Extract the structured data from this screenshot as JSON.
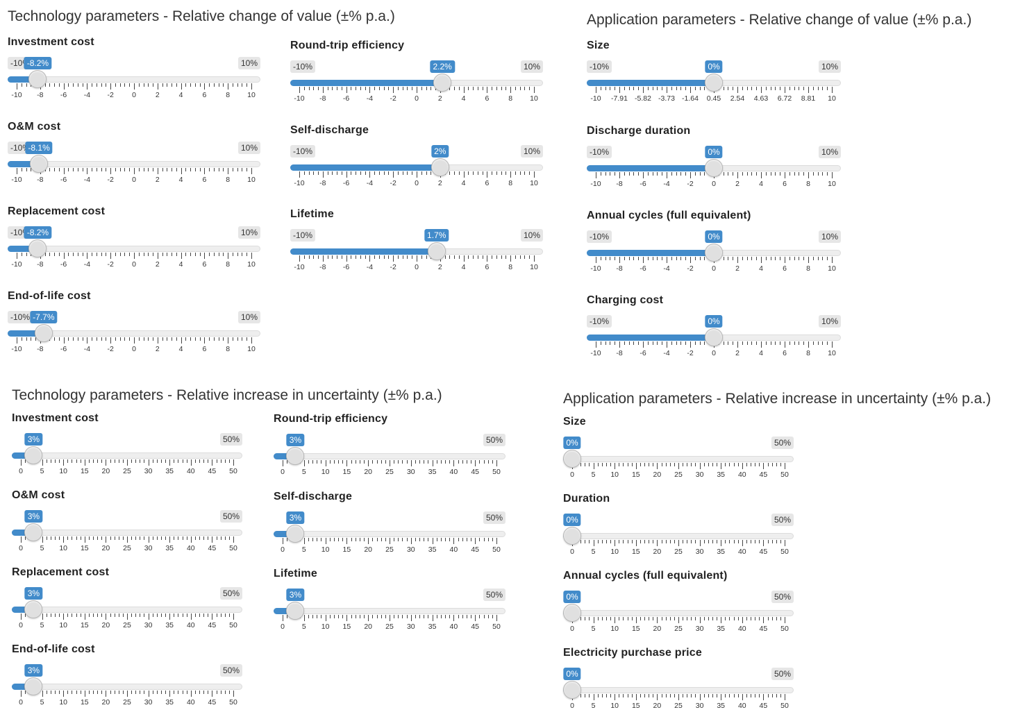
{
  "sections": [
    {
      "id": "tech_value",
      "title": "Technology parameters - Relative change of value (±% p.a.)",
      "sliders": [
        {
          "label": "Investment cost",
          "min": "-10%",
          "max": "10%",
          "value_label": "-8.2%",
          "value": -8.2,
          "range": [
            -10,
            10
          ],
          "ticks": [
            "-10",
            "-8",
            "-6",
            "-4",
            "-2",
            "0",
            "2",
            "4",
            "6",
            "8",
            "10"
          ]
        },
        {
          "label": "O&M cost",
          "min": "-10%",
          "max": "10%",
          "value_label": "-8.1%",
          "value": -8.1,
          "range": [
            -10,
            10
          ],
          "ticks": [
            "-10",
            "-8",
            "-6",
            "-4",
            "-2",
            "0",
            "2",
            "4",
            "6",
            "8",
            "10"
          ]
        },
        {
          "label": "Replacement cost",
          "min": "-10%",
          "max": "10%",
          "value_label": "-8.2%",
          "value": -8.2,
          "range": [
            -10,
            10
          ],
          "ticks": [
            "-10",
            "-8",
            "-6",
            "-4",
            "-2",
            "0",
            "2",
            "4",
            "6",
            "8",
            "10"
          ]
        },
        {
          "label": "End-of-life cost",
          "min": "-10%",
          "max": "10%",
          "value_label": "-7.7%",
          "value": -7.7,
          "range": [
            -10,
            10
          ],
          "ticks": [
            "-10",
            "-8",
            "-6",
            "-4",
            "-2",
            "0",
            "2",
            "4",
            "6",
            "8",
            "10"
          ]
        },
        {
          "label": "Round-trip efficiency",
          "min": "-10%",
          "max": "10%",
          "value_label": "2.2%",
          "value": 2.2,
          "range": [
            -10,
            10
          ],
          "ticks": [
            "-10",
            "-8",
            "-6",
            "-4",
            "-2",
            "0",
            "2",
            "4",
            "6",
            "8",
            "10"
          ]
        },
        {
          "label": "Self-discharge",
          "min": "-10%",
          "max": "10%",
          "value_label": "2%",
          "value": 2,
          "range": [
            -10,
            10
          ],
          "ticks": [
            "-10",
            "-8",
            "-6",
            "-4",
            "-2",
            "0",
            "2",
            "4",
            "6",
            "8",
            "10"
          ]
        },
        {
          "label": "Lifetime",
          "min": "-10%",
          "max": "10%",
          "value_label": "1.7%",
          "value": 1.7,
          "range": [
            -10,
            10
          ],
          "ticks": [
            "-10",
            "-8",
            "-6",
            "-4",
            "-2",
            "0",
            "2",
            "4",
            "6",
            "8",
            "10"
          ]
        }
      ]
    },
    {
      "id": "app_value",
      "title": "Application parameters - Relative change of value (±% p.a.)",
      "sliders": [
        {
          "label": "Size",
          "min": "-10%",
          "max": "10%",
          "value_label": "0%",
          "value": 0,
          "range": [
            -10,
            10
          ],
          "ticks": [
            "-10",
            "-7.91",
            "-5.82",
            "-3.73",
            "-1.64",
            "0.45",
            "2.54",
            "4.63",
            "6.72",
            "8.81",
            "10"
          ]
        },
        {
          "label": "Discharge duration",
          "min": "-10%",
          "max": "10%",
          "value_label": "0%",
          "value": 0,
          "range": [
            -10,
            10
          ],
          "ticks": [
            "-10",
            "-8",
            "-6",
            "-4",
            "-2",
            "0",
            "2",
            "4",
            "6",
            "8",
            "10"
          ]
        },
        {
          "label": "Annual cycles (full equivalent)",
          "min": "-10%",
          "max": "10%",
          "value_label": "0%",
          "value": 0,
          "range": [
            -10,
            10
          ],
          "ticks": [
            "-10",
            "-8",
            "-6",
            "-4",
            "-2",
            "0",
            "2",
            "4",
            "6",
            "8",
            "10"
          ]
        },
        {
          "label": "Charging cost",
          "min": "-10%",
          "max": "10%",
          "value_label": "0%",
          "value": 0,
          "range": [
            -10,
            10
          ],
          "ticks": [
            "-10",
            "-8",
            "-6",
            "-4",
            "-2",
            "0",
            "2",
            "4",
            "6",
            "8",
            "10"
          ]
        }
      ]
    },
    {
      "id": "tech_unc",
      "title": "Technology parameters - Relative increase in uncertainty (±% p.a.)",
      "sliders": [
        {
          "label": "Investment cost",
          "max": "50%",
          "value_label": "3%",
          "value": 3,
          "range": [
            0,
            50
          ],
          "ticks": [
            "0",
            "5",
            "10",
            "15",
            "20",
            "25",
            "30",
            "35",
            "40",
            "45",
            "50"
          ]
        },
        {
          "label": "O&M cost",
          "max": "50%",
          "value_label": "3%",
          "value": 3,
          "range": [
            0,
            50
          ],
          "ticks": [
            "0",
            "5",
            "10",
            "15",
            "20",
            "25",
            "30",
            "35",
            "40",
            "45",
            "50"
          ]
        },
        {
          "label": "Replacement cost",
          "max": "50%",
          "value_label": "3%",
          "value": 3,
          "range": [
            0,
            50
          ],
          "ticks": [
            "0",
            "5",
            "10",
            "15",
            "20",
            "25",
            "30",
            "35",
            "40",
            "45",
            "50"
          ]
        },
        {
          "label": "End-of-life cost",
          "max": "50%",
          "value_label": "3%",
          "value": 3,
          "range": [
            0,
            50
          ],
          "ticks": [
            "0",
            "5",
            "10",
            "15",
            "20",
            "25",
            "30",
            "35",
            "40",
            "45",
            "50"
          ]
        },
        {
          "label": "Round-trip efficiency",
          "max": "50%",
          "value_label": "3%",
          "value": 3,
          "range": [
            0,
            50
          ],
          "ticks": [
            "0",
            "5",
            "10",
            "15",
            "20",
            "25",
            "30",
            "35",
            "40",
            "45",
            "50"
          ]
        },
        {
          "label": "Self-discharge",
          "max": "50%",
          "value_label": "3%",
          "value": 3,
          "range": [
            0,
            50
          ],
          "ticks": [
            "0",
            "5",
            "10",
            "15",
            "20",
            "25",
            "30",
            "35",
            "40",
            "45",
            "50"
          ]
        },
        {
          "label": "Lifetime",
          "max": "50%",
          "value_label": "3%",
          "value": 3,
          "range": [
            0,
            50
          ],
          "ticks": [
            "0",
            "5",
            "10",
            "15",
            "20",
            "25",
            "30",
            "35",
            "40",
            "45",
            "50"
          ]
        }
      ]
    },
    {
      "id": "app_unc",
      "title": "Application parameters - Relative increase in uncertainty (±% p.a.)",
      "sliders": [
        {
          "label": "Size",
          "max": "50%",
          "value_label": "0%",
          "value": 0,
          "range": [
            0,
            50
          ],
          "ticks": [
            "0",
            "5",
            "10",
            "15",
            "20",
            "25",
            "30",
            "35",
            "40",
            "45",
            "50"
          ]
        },
        {
          "label": "Duration",
          "max": "50%",
          "value_label": "0%",
          "value": 0,
          "range": [
            0,
            50
          ],
          "ticks": [
            "0",
            "5",
            "10",
            "15",
            "20",
            "25",
            "30",
            "35",
            "40",
            "45",
            "50"
          ]
        },
        {
          "label": "Annual cycles (full equivalent)",
          "max": "50%",
          "value_label": "0%",
          "value": 0,
          "range": [
            0,
            50
          ],
          "ticks": [
            "0",
            "5",
            "10",
            "15",
            "20",
            "25",
            "30",
            "35",
            "40",
            "45",
            "50"
          ]
        },
        {
          "label": "Electricity purchase price",
          "max": "50%",
          "value_label": "0%",
          "value": 0,
          "range": [
            0,
            50
          ],
          "ticks": [
            "0",
            "5",
            "10",
            "15",
            "20",
            "25",
            "30",
            "35",
            "40",
            "45",
            "50"
          ]
        }
      ]
    }
  ]
}
